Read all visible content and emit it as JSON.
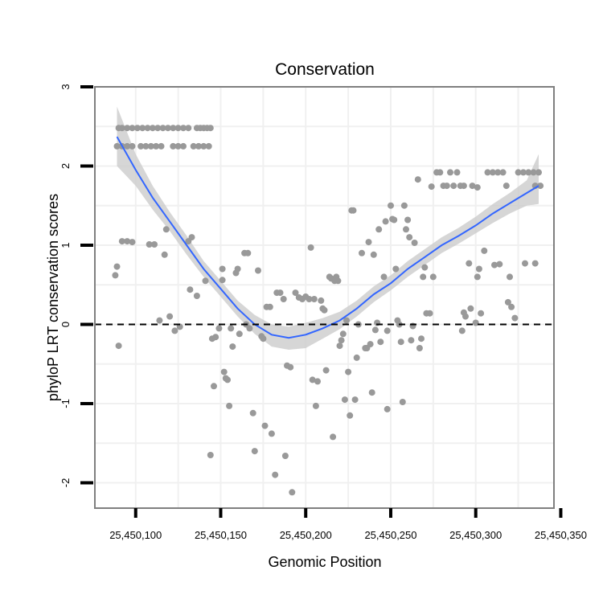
{
  "chart_data": {
    "type": "scatter",
    "title": "Conservation",
    "xlabel": "Genomic Position",
    "ylabel": "phyloP LRT conservation scores",
    "xlim": [
      25450076,
      25450346
    ],
    "ylim": [
      -2.32,
      3.0
    ],
    "x_ticks": [
      25450100,
      25450150,
      25450200,
      25450250,
      25450300,
      25450350
    ],
    "x_tick_labels": [
      "25,450,100",
      "25,450,150",
      "25,450,200",
      "25,450,250",
      "25,450,300",
      "25,450,350"
    ],
    "y_ticks": [
      -2,
      -1,
      0,
      1,
      2,
      3
    ],
    "y_tick_labels": [
      "-2",
      "-1",
      "0",
      "1",
      "2",
      "3"
    ],
    "reference_line": {
      "y": 0,
      "style": "dashed"
    },
    "colors": {
      "points": "#999999",
      "smooth_line": "#3366ff",
      "ribbon": "#cccccc",
      "grid": "#f0f0f0",
      "frame": "#7f7f7f"
    },
    "smooth": {
      "x": [
        25450089,
        25450100,
        25450110,
        25450120,
        25450130,
        25450140,
        25450150,
        25450160,
        25450170,
        25450180,
        25450190,
        25450200,
        25450210,
        25450220,
        25450230,
        25450240,
        25450250,
        25450260,
        25450270,
        25450280,
        25450290,
        25450300,
        25450310,
        25450320,
        25450330,
        25450337
      ],
      "y": [
        2.37,
        1.95,
        1.6,
        1.3,
        1.0,
        0.7,
        0.45,
        0.2,
        0.0,
        -0.13,
        -0.17,
        -0.13,
        -0.05,
        0.05,
        0.2,
        0.38,
        0.52,
        0.7,
        0.85,
        1.0,
        1.12,
        1.25,
        1.4,
        1.53,
        1.66,
        1.75
      ],
      "lower": [
        2.0,
        1.75,
        1.45,
        1.18,
        0.88,
        0.6,
        0.35,
        0.1,
        -0.12,
        -0.28,
        -0.32,
        -0.3,
        -0.18,
        -0.06,
        0.1,
        0.28,
        0.43,
        0.6,
        0.75,
        0.9,
        1.02,
        1.15,
        1.28,
        1.4,
        1.5,
        1.52
      ],
      "upper": [
        2.75,
        2.15,
        1.75,
        1.42,
        1.12,
        0.8,
        0.55,
        0.3,
        0.12,
        0.0,
        -0.03,
        0.02,
        0.08,
        0.16,
        0.3,
        0.48,
        0.62,
        0.8,
        0.95,
        1.1,
        1.22,
        1.36,
        1.52,
        1.66,
        1.82,
        2.15
      ]
    },
    "points": [
      [
        25450090,
        2.48
      ],
      [
        25450092,
        2.48
      ],
      [
        25450095,
        2.48
      ],
      [
        25450098,
        2.48
      ],
      [
        25450101,
        2.48
      ],
      [
        25450104,
        2.48
      ],
      [
        25450107,
        2.48
      ],
      [
        25450110,
        2.48
      ],
      [
        25450113,
        2.48
      ],
      [
        25450116,
        2.48
      ],
      [
        25450119,
        2.48
      ],
      [
        25450122,
        2.48
      ],
      [
        25450125,
        2.48
      ],
      [
        25450128,
        2.48
      ],
      [
        25450131,
        2.48
      ],
      [
        25450136,
        2.48
      ],
      [
        25450138,
        2.48
      ],
      [
        25450140,
        2.48
      ],
      [
        25450142,
        2.48
      ],
      [
        25450144,
        2.48
      ],
      [
        25450089,
        2.25
      ],
      [
        25450092,
        2.25
      ],
      [
        25450095,
        2.25
      ],
      [
        25450098,
        2.25
      ],
      [
        25450103,
        2.25
      ],
      [
        25450106,
        2.25
      ],
      [
        25450109,
        2.25
      ],
      [
        25450112,
        2.25
      ],
      [
        25450115,
        2.25
      ],
      [
        25450122,
        2.25
      ],
      [
        25450125,
        2.25
      ],
      [
        25450128,
        2.25
      ],
      [
        25450134,
        2.25
      ],
      [
        25450137,
        2.25
      ],
      [
        25450140,
        2.25
      ],
      [
        25450143,
        2.25
      ],
      [
        25450088,
        0.62
      ],
      [
        25450089,
        0.73
      ],
      [
        25450090,
        -0.27
      ],
      [
        25450092,
        1.05
      ],
      [
        25450095,
        1.05
      ],
      [
        25450098,
        1.04
      ],
      [
        25450108,
        1.01
      ],
      [
        25450111,
        1.01
      ],
      [
        25450114,
        0.05
      ],
      [
        25450118,
        1.2
      ],
      [
        25450117,
        0.88
      ],
      [
        25450120,
        0.1
      ],
      [
        25450123,
        -0.08
      ],
      [
        25450126,
        -0.03
      ],
      [
        25450131,
        1.05
      ],
      [
        25450133,
        1.1
      ],
      [
        25450132,
        0.44
      ],
      [
        25450136,
        0.36
      ],
      [
        25450141,
        0.55
      ],
      [
        25450144,
        -1.65
      ],
      [
        25450146,
        -0.78
      ],
      [
        25450145,
        -0.18
      ],
      [
        25450147,
        -0.16
      ],
      [
        25450149,
        -0.05
      ],
      [
        25450151,
        0.56
      ],
      [
        25450151,
        0.7
      ],
      [
        25450152,
        -0.6
      ],
      [
        25450153,
        -0.68
      ],
      [
        25450154,
        -0.7
      ],
      [
        25450156,
        -0.05
      ],
      [
        25450155,
        -1.03
      ],
      [
        25450157,
        -0.28
      ],
      [
        25450159,
        0.65
      ],
      [
        25450160,
        0.7
      ],
      [
        25450161,
        -0.12
      ],
      [
        25450164,
        0.9
      ],
      [
        25450166,
        0.9
      ],
      [
        25450165,
        0.0
      ],
      [
        25450167,
        -0.05
      ],
      [
        25450169,
        -1.12
      ],
      [
        25450170,
        -1.6
      ],
      [
        25450172,
        0.68
      ],
      [
        25450174,
        -0.15
      ],
      [
        25450175,
        -0.18
      ],
      [
        25450176,
        -1.28
      ],
      [
        25450177,
        0.22
      ],
      [
        25450179,
        0.22
      ],
      [
        25450180,
        -1.38
      ],
      [
        25450182,
        -1.9
      ],
      [
        25450183,
        0.4
      ],
      [
        25450185,
        0.4
      ],
      [
        25450187,
        0.32
      ],
      [
        25450188,
        -1.66
      ],
      [
        25450189,
        -0.52
      ],
      [
        25450191,
        -0.54
      ],
      [
        25450192,
        -2.12
      ],
      [
        25450194,
        0.4
      ],
      [
        25450196,
        0.34
      ],
      [
        25450198,
        0.32
      ],
      [
        25450200,
        0.35
      ],
      [
        25450202,
        0.32
      ],
      [
        25450203,
        0.97
      ],
      [
        25450204,
        -0.7
      ],
      [
        25450205,
        0.32
      ],
      [
        25450206,
        -1.03
      ],
      [
        25450207,
        -0.72
      ],
      [
        25450209,
        0.3
      ],
      [
        25450210,
        0.2
      ],
      [
        25450211,
        0.18
      ],
      [
        25450212,
        -0.58
      ],
      [
        25450214,
        0.6
      ],
      [
        25450215,
        0.58
      ],
      [
        25450216,
        -1.42
      ],
      [
        25450217,
        0.55
      ],
      [
        25450218,
        0.6
      ],
      [
        25450219,
        0.55
      ],
      [
        25450220,
        -0.27
      ],
      [
        25450221,
        -0.2
      ],
      [
        25450222,
        -0.12
      ],
      [
        25450223,
        -0.95
      ],
      [
        25450224,
        0.05
      ],
      [
        25450225,
        -0.6
      ],
      [
        25450226,
        -1.15
      ],
      [
        25450227,
        1.44
      ],
      [
        25450228,
        1.44
      ],
      [
        25450229,
        -0.95
      ],
      [
        25450230,
        -0.42
      ],
      [
        25450231,
        0.0
      ],
      [
        25450233,
        0.9
      ],
      [
        25450235,
        -0.3
      ],
      [
        25450236,
        -0.3
      ],
      [
        25450237,
        1.04
      ],
      [
        25450238,
        -0.25
      ],
      [
        25450239,
        -0.86
      ],
      [
        25450240,
        0.88
      ],
      [
        25450241,
        -0.07
      ],
      [
        25450242,
        0.02
      ],
      [
        25450243,
        1.2
      ],
      [
        25450244,
        -0.22
      ],
      [
        25450246,
        0.6
      ],
      [
        25450247,
        1.3
      ],
      [
        25450248,
        -0.08
      ],
      [
        25450248,
        -1.07
      ],
      [
        25450250,
        1.5
      ],
      [
        25450251,
        1.33
      ],
      [
        25450252,
        1.32
      ],
      [
        25450253,
        0.7
      ],
      [
        25450254,
        0.05
      ],
      [
        25450255,
        0.0
      ],
      [
        25450256,
        -0.22
      ],
      [
        25450257,
        -0.98
      ],
      [
        25450258,
        1.5
      ],
      [
        25450259,
        1.2
      ],
      [
        25450260,
        1.32
      ],
      [
        25450261,
        1.1
      ],
      [
        25450262,
        -0.2
      ],
      [
        25450263,
        -0.02
      ],
      [
        25450264,
        1.03
      ],
      [
        25450266,
        1.83
      ],
      [
        25450267,
        -0.3
      ],
      [
        25450268,
        -0.18
      ],
      [
        25450269,
        0.6
      ],
      [
        25450270,
        0.72
      ],
      [
        25450271,
        0.14
      ],
      [
        25450273,
        0.14
      ],
      [
        25450274,
        1.74
      ],
      [
        25450275,
        0.6
      ],
      [
        25450277,
        1.92
      ],
      [
        25450279,
        1.92
      ],
      [
        25450281,
        1.75
      ],
      [
        25450283,
        1.75
      ],
      [
        25450285,
        1.92
      ],
      [
        25450287,
        1.75
      ],
      [
        25450289,
        1.92
      ],
      [
        25450291,
        1.75
      ],
      [
        25450293,
        1.75
      ],
      [
        25450296,
        0.77
      ],
      [
        25450298,
        1.75
      ],
      [
        25450301,
        0.6
      ],
      [
        25450302,
        0.7
      ],
      [
        25450305,
        0.93
      ],
      [
        25450301,
        1.73
      ],
      [
        25450292,
        -0.08
      ],
      [
        25450293,
        0.15
      ],
      [
        25450294,
        0.1
      ],
      [
        25450297,
        0.2
      ],
      [
        25450300,
        0.02
      ],
      [
        25450303,
        0.14
      ],
      [
        25450307,
        1.92
      ],
      [
        25450310,
        1.92
      ],
      [
        25450313,
        1.92
      ],
      [
        25450316,
        1.92
      ],
      [
        25450318,
        1.75
      ],
      [
        25450320,
        0.6
      ],
      [
        25450319,
        0.28
      ],
      [
        25450321,
        0.22
      ],
      [
        25450323,
        0.08
      ],
      [
        25450325,
        1.92
      ],
      [
        25450328,
        1.92
      ],
      [
        25450331,
        1.92
      ],
      [
        25450334,
        1.92
      ],
      [
        25450337,
        1.92
      ],
      [
        25450335,
        1.75
      ],
      [
        25450338,
        1.75
      ],
      [
        25450329,
        0.77
      ],
      [
        25450335,
        0.77
      ],
      [
        25450311,
        0.75
      ],
      [
        25450314,
        0.76
      ]
    ]
  }
}
